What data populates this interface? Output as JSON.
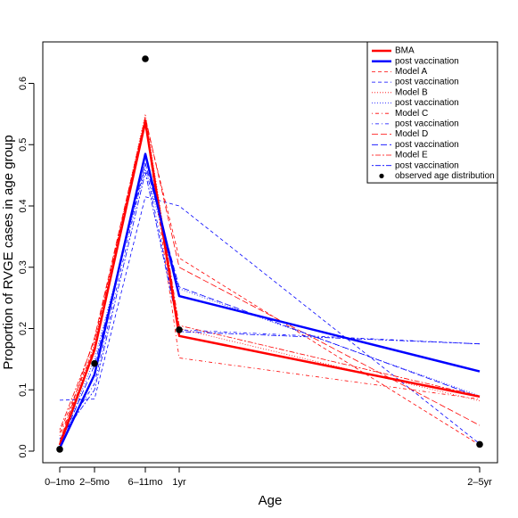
{
  "chart_data": {
    "type": "line",
    "xlabel": "Age",
    "ylabel": "Proportion of RVGE cases in age group",
    "x": [
      0.5,
      3.5,
      8.5,
      11.5,
      48
    ],
    "x_tick_labels": [
      "0–1mo",
      "2–5mo",
      "6–11mo",
      "1yr",
      "2–5yr"
    ],
    "xlim": [
      0,
      48
    ],
    "ylim": [
      0,
      0.65
    ],
    "y_ticks": [
      0.0,
      0.1,
      0.2,
      0.3,
      0.4,
      0.5,
      0.6
    ],
    "y_tick_labels": [
      "0.0",
      "0.1",
      "0.2",
      "0.3",
      "0.4",
      "0.5",
      "0.6"
    ],
    "grid": false,
    "legend_position": "top-right",
    "series": [
      {
        "name": "BMA",
        "color": "#ff0000",
        "dash": "solid",
        "width": 2.5,
        "values": [
          0.01,
          0.165,
          0.537,
          0.188,
          0.089
        ]
      },
      {
        "name": "post vaccination",
        "color": "#0000ff",
        "dash": "solid",
        "width": 2.5,
        "values": [
          0.005,
          0.125,
          0.485,
          0.253,
          0.13
        ]
      },
      {
        "name": "Model A",
        "color": "#ff0000",
        "dash": "dashed",
        "width": 0.8,
        "values": [
          0.03,
          0.17,
          0.54,
          0.315,
          0.01
        ]
      },
      {
        "name": "post vaccination",
        "color": "#0000ff",
        "dash": "dashed",
        "width": 0.8,
        "values": [
          0.083,
          0.085,
          0.415,
          0.4,
          0.012
        ]
      },
      {
        "name": "Model B",
        "color": "#ff0000",
        "dash": "dotted",
        "width": 0.8,
        "values": [
          0.012,
          0.175,
          0.55,
          0.2,
          0.082
        ]
      },
      {
        "name": "post vaccination",
        "color": "#0000ff",
        "dash": "dotted",
        "width": 0.8,
        "values": [
          0.008,
          0.15,
          0.46,
          0.265,
          0.09
        ]
      },
      {
        "name": "Model C",
        "color": "#ff0000",
        "dash": "dashdot",
        "width": 0.8,
        "values": [
          0.025,
          0.16,
          0.535,
          0.152,
          0.085
        ]
      },
      {
        "name": "post vaccination",
        "color": "#0000ff",
        "dash": "dashdot",
        "width": 0.8,
        "values": [
          0.02,
          0.11,
          0.468,
          0.198,
          0.175
        ]
      },
      {
        "name": "Model D",
        "color": "#ff0000",
        "dash": "longdash",
        "width": 0.8,
        "values": [
          0.015,
          0.185,
          0.545,
          0.3,
          0.042
        ]
      },
      {
        "name": "post vaccination",
        "color": "#0000ff",
        "dash": "longdash",
        "width": 0.8,
        "values": [
          0.01,
          0.14,
          0.47,
          0.268,
          0.088
        ]
      },
      {
        "name": "Model E",
        "color": "#ff0000",
        "dash": "twodash",
        "width": 0.8,
        "values": [
          0.035,
          0.18,
          0.542,
          0.205,
          0.09
        ]
      },
      {
        "name": "post vaccination",
        "color": "#0000ff",
        "dash": "twodash",
        "width": 0.8,
        "values": [
          0.02,
          0.1,
          0.455,
          0.195,
          0.175
        ]
      }
    ],
    "points": {
      "name": "observed age distribution",
      "color": "#000000",
      "values": [
        0.003,
        0.143,
        0.64,
        0.198,
        0.011
      ]
    }
  }
}
